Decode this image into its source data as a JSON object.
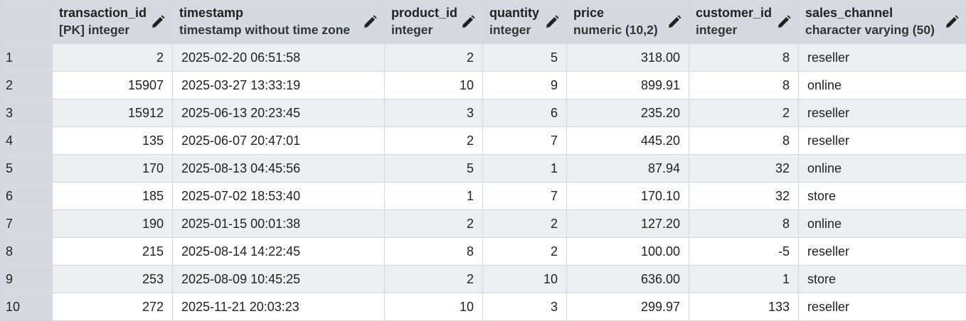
{
  "columns": [
    {
      "name": "transaction_id",
      "type": "[PK] integer"
    },
    {
      "name": "timestamp",
      "type": "timestamp without time zone"
    },
    {
      "name": "product_id",
      "type": "integer"
    },
    {
      "name": "quantity",
      "type": "integer"
    },
    {
      "name": "price",
      "type": "numeric (10,2)"
    },
    {
      "name": "customer_id",
      "type": "integer"
    },
    {
      "name": "sales_channel",
      "type": "character varying (50)"
    }
  ],
  "rows": [
    {
      "n": "1",
      "transaction_id": "2",
      "timestamp": "2025-02-20 06:51:58",
      "product_id": "2",
      "quantity": "5",
      "price": "318.00",
      "customer_id": "8",
      "sales_channel": "reseller"
    },
    {
      "n": "2",
      "transaction_id": "15907",
      "timestamp": "2025-03-27 13:33:19",
      "product_id": "10",
      "quantity": "9",
      "price": "899.91",
      "customer_id": "8",
      "sales_channel": "online"
    },
    {
      "n": "3",
      "transaction_id": "15912",
      "timestamp": "2025-06-13 20:23:45",
      "product_id": "3",
      "quantity": "6",
      "price": "235.20",
      "customer_id": "2",
      "sales_channel": "reseller"
    },
    {
      "n": "4",
      "transaction_id": "135",
      "timestamp": "2025-06-07 20:47:01",
      "product_id": "2",
      "quantity": "7",
      "price": "445.20",
      "customer_id": "8",
      "sales_channel": "reseller"
    },
    {
      "n": "5",
      "transaction_id": "170",
      "timestamp": "2025-08-13 04:45:56",
      "product_id": "5",
      "quantity": "1",
      "price": "87.94",
      "customer_id": "32",
      "sales_channel": "online"
    },
    {
      "n": "6",
      "transaction_id": "185",
      "timestamp": "2025-07-02 18:53:40",
      "product_id": "1",
      "quantity": "7",
      "price": "170.10",
      "customer_id": "32",
      "sales_channel": "store"
    },
    {
      "n": "7",
      "transaction_id": "190",
      "timestamp": "2025-01-15 00:01:38",
      "product_id": "2",
      "quantity": "2",
      "price": "127.20",
      "customer_id": "8",
      "sales_channel": "online"
    },
    {
      "n": "8",
      "transaction_id": "215",
      "timestamp": "2025-08-14 14:22:45",
      "product_id": "8",
      "quantity": "2",
      "price": "100.00",
      "customer_id": "-5",
      "sales_channel": "reseller"
    },
    {
      "n": "9",
      "transaction_id": "253",
      "timestamp": "2025-08-09 10:45:25",
      "product_id": "2",
      "quantity": "10",
      "price": "636.00",
      "customer_id": "1",
      "sales_channel": "store"
    },
    {
      "n": "10",
      "transaction_id": "272",
      "timestamp": "2025-11-21 20:03:23",
      "product_id": "10",
      "quantity": "3",
      "price": "299.97",
      "customer_id": "133",
      "sales_channel": "reseller"
    }
  ],
  "icons": {
    "column_edit": "pencil-icon"
  },
  "colors": {
    "header_bg": "#d6dae0",
    "row_alt_bg": "#eceef2",
    "row_bg": "#ffffff",
    "grid_line": "#d4d8dd"
  }
}
